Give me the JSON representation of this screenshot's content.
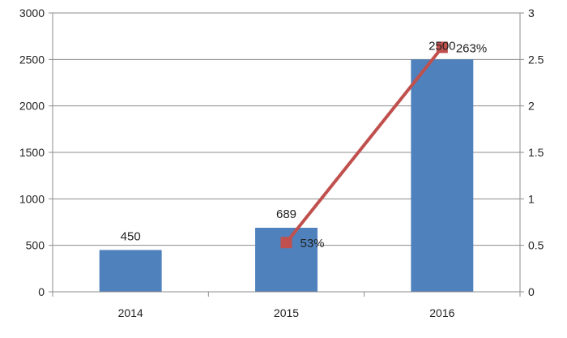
{
  "chart_data": {
    "type": "bar",
    "categories": [
      "2014",
      "2015",
      "2016"
    ],
    "series": [
      {
        "type": "bar",
        "axis": "left",
        "color": "#4f81bd",
        "values": [
          450,
          689,
          2500
        ],
        "labels": [
          "450",
          "689",
          "2500"
        ]
      },
      {
        "type": "line",
        "axis": "right",
        "color": "#c0504d",
        "values": [
          null,
          0.53,
          2.63
        ],
        "labels": [
          "",
          "53%",
          "263%"
        ]
      }
    ],
    "y_left": {
      "min": 0,
      "max": 3000,
      "ticks": [
        "0",
        "500",
        "1000",
        "1500",
        "2000",
        "2500",
        "3000"
      ]
    },
    "y_right": {
      "min": 0,
      "max": 3,
      "ticks": [
        "0",
        "0.5",
        "1",
        "1.5",
        "2",
        "2.5",
        "3"
      ]
    },
    "grid": true,
    "legend": "none",
    "title": "",
    "xlabel": "",
    "ylabel": ""
  }
}
